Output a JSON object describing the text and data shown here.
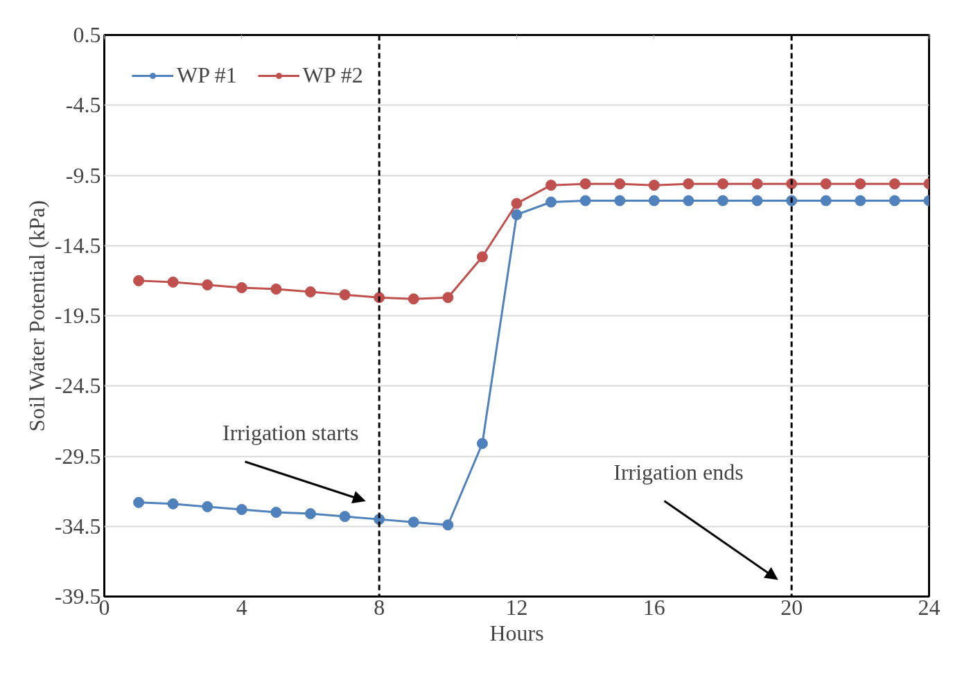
{
  "chart_data": {
    "type": "line",
    "xlabel": "Hours",
    "ylabel": "Soil Water Potential (kPa)",
    "x": [
      1,
      2,
      3,
      4,
      5,
      6,
      7,
      8,
      9,
      10,
      11,
      12,
      13,
      14,
      15,
      16,
      17,
      18,
      19,
      20,
      21,
      22,
      23,
      24
    ],
    "series": [
      {
        "name": "WP #1",
        "color": "#4f81bd",
        "values": [
          -32.8,
          -32.9,
          -33.1,
          -33.3,
          -33.5,
          -33.6,
          -33.8,
          -34.0,
          -34.2,
          -34.4,
          -28.6,
          -12.3,
          -11.4,
          -11.3,
          -11.3,
          -11.3,
          -11.3,
          -11.3,
          -11.3,
          -11.3,
          -11.3,
          -11.3,
          -11.3,
          -11.3
        ]
      },
      {
        "name": "WP #2",
        "color": "#c0504d",
        "values": [
          -17.0,
          -17.1,
          -17.3,
          -17.5,
          -17.6,
          -17.8,
          -18.0,
          -18.2,
          -18.3,
          -18.2,
          -15.3,
          -11.5,
          -10.2,
          -10.1,
          -10.1,
          -10.2,
          -10.1,
          -10.1,
          -10.1,
          -10.1,
          -10.1,
          -10.1,
          -10.1,
          -10.1
        ]
      }
    ],
    "xlim": [
      0,
      24
    ],
    "xticks": [
      0,
      4,
      8,
      12,
      16,
      20,
      24
    ],
    "ylim": [
      -39.5,
      0.5
    ],
    "yticks": [
      0.5,
      -4.5,
      -9.5,
      -14.5,
      -19.5,
      -24.5,
      -29.5,
      -34.5,
      -39.5
    ],
    "ref_lines": [
      {
        "axis": "x",
        "value": 8,
        "label": "Irrigation starts",
        "color": "#000000",
        "line_style": "dashed"
      },
      {
        "axis": "x",
        "value": 20,
        "label": "Irrigation ends",
        "color": "#000000",
        "line_style": "dashed"
      }
    ],
    "grid": "y",
    "legend": "top left",
    "marker": "circle",
    "line_style": "solid"
  }
}
